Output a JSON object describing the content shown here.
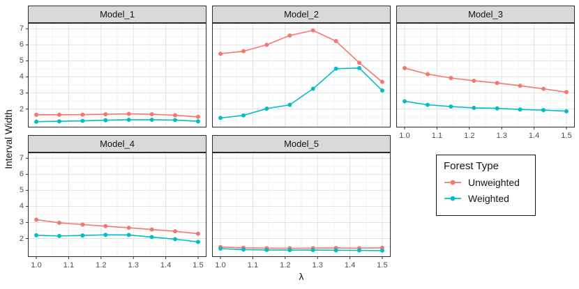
{
  "chart_data": {
    "type": "line",
    "xlabel": "λ",
    "ylabel": "Interval Width",
    "x": [
      1.0,
      1.071,
      1.143,
      1.214,
      1.286,
      1.357,
      1.429,
      1.5
    ],
    "x_ticks": [
      1.0,
      1.1,
      1.2,
      1.3,
      1.4,
      1.5
    ],
    "y_ticks": [
      2,
      3,
      4,
      5,
      6,
      7
    ],
    "xlim": [
      0.974,
      1.526
    ],
    "ylim": [
      0.85,
      7.36
    ],
    "grid": true,
    "legend_position": "bottom-right",
    "series_names": [
      "Unweighted",
      "Weighted"
    ],
    "facets": [
      {
        "name": "Model_1",
        "series": [
          {
            "name": "Unweighted",
            "values": [
              1.64,
              1.64,
              1.65,
              1.67,
              1.69,
              1.67,
              1.61,
              1.51
            ]
          },
          {
            "name": "Weighted",
            "values": [
              1.21,
              1.23,
              1.26,
              1.3,
              1.33,
              1.33,
              1.31,
              1.23
            ]
          }
        ]
      },
      {
        "name": "Model_2",
        "series": [
          {
            "name": "Unweighted",
            "values": [
              5.44,
              5.6,
              6.0,
              6.58,
              6.9,
              6.23,
              4.88,
              3.69
            ]
          },
          {
            "name": "Weighted",
            "values": [
              1.44,
              1.6,
              2.02,
              2.26,
              3.26,
              4.51,
              4.55,
              3.15
            ]
          }
        ]
      },
      {
        "name": "Model_3",
        "series": [
          {
            "name": "Unweighted",
            "values": [
              4.55,
              4.17,
              3.93,
              3.76,
              3.62,
              3.45,
              3.26,
              3.05
            ]
          },
          {
            "name": "Weighted",
            "values": [
              2.48,
              2.26,
              2.15,
              2.07,
              2.04,
              1.97,
              1.93,
              1.86
            ]
          }
        ]
      },
      {
        "name": "Model_4",
        "series": [
          {
            "name": "Unweighted",
            "values": [
              3.17,
              2.98,
              2.87,
              2.77,
              2.67,
              2.56,
              2.45,
              2.3
            ]
          },
          {
            "name": "Weighted",
            "values": [
              2.2,
              2.16,
              2.19,
              2.23,
              2.22,
              2.09,
              1.96,
              1.79
            ]
          }
        ]
      },
      {
        "name": "Model_5",
        "series": [
          {
            "name": "Unweighted",
            "values": [
              1.47,
              1.42,
              1.4,
              1.39,
              1.4,
              1.41,
              1.4,
              1.42
            ]
          },
          {
            "name": "Weighted",
            "values": [
              1.37,
              1.31,
              1.29,
              1.28,
              1.28,
              1.27,
              1.26,
              1.25
            ]
          }
        ]
      }
    ],
    "legend": {
      "title": "Forest Type",
      "entries": [
        {
          "label": "Unweighted",
          "color": "#F8766D"
        },
        {
          "label": "Weighted",
          "color": "#00BFC4"
        }
      ]
    },
    "theme": {
      "strip_bg": "#D9D9D9",
      "panel_border": "#2b2b2b",
      "grid_major": "#E3E3E3",
      "grid_minor": "#F1F1F1",
      "axis_text": "#4D4D4D",
      "tick_mark": "#333333"
    }
  }
}
